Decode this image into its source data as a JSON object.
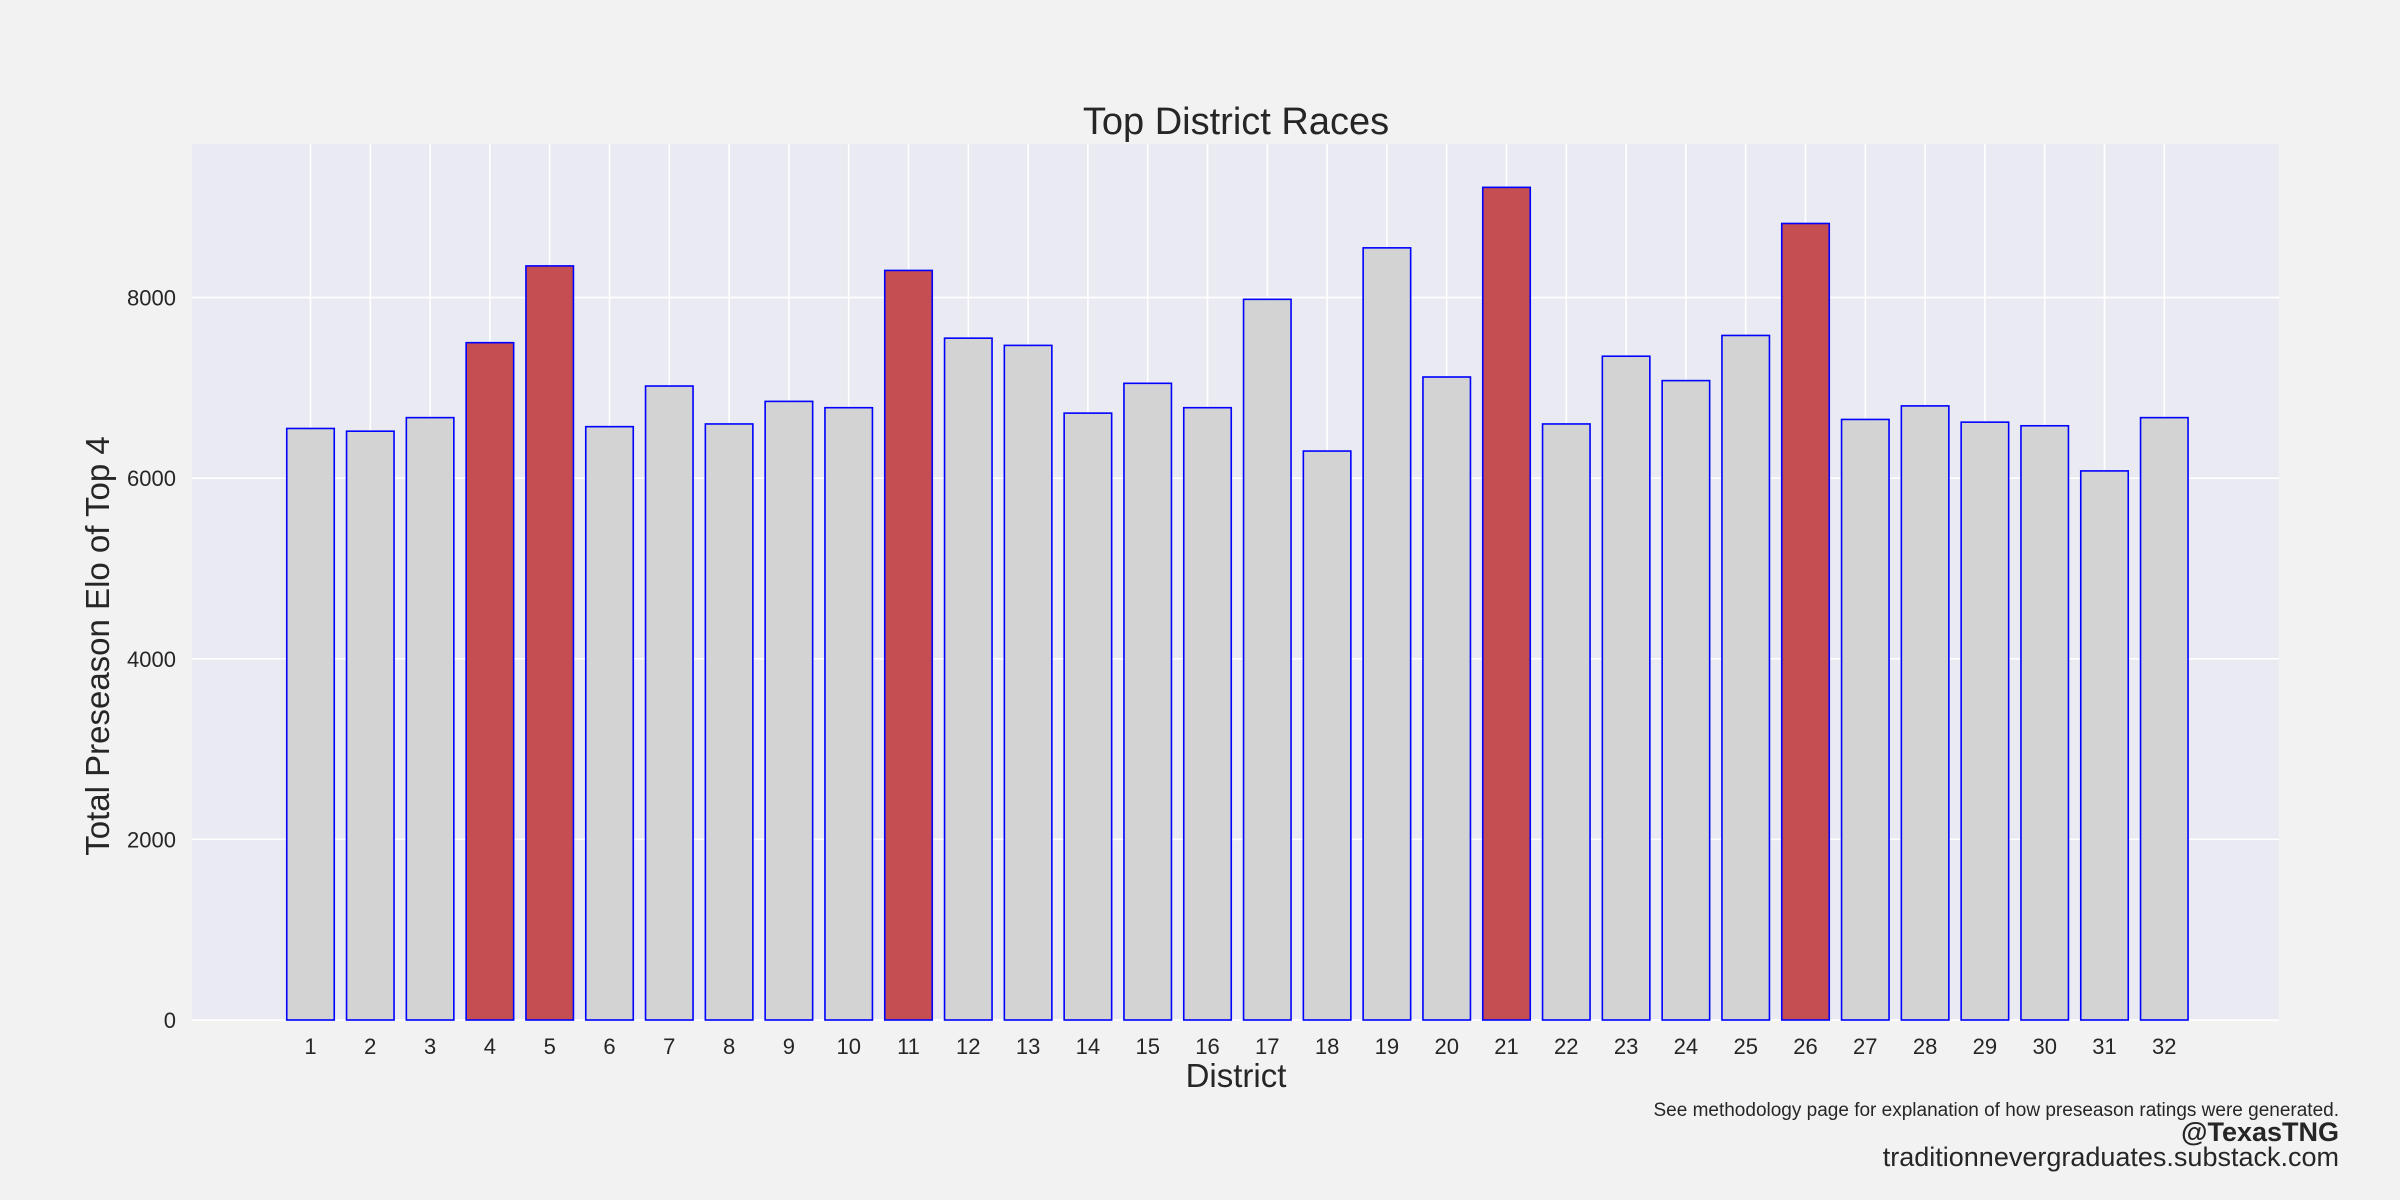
{
  "chart_data": {
    "type": "bar",
    "title": "Top District Races",
    "xlabel": "District",
    "ylabel": "Total Preseason Elo of Top 4",
    "categories": [
      "1",
      "2",
      "3",
      "4",
      "5",
      "6",
      "7",
      "8",
      "9",
      "10",
      "11",
      "12",
      "13",
      "14",
      "15",
      "16",
      "17",
      "18",
      "19",
      "20",
      "21",
      "22",
      "23",
      "24",
      "25",
      "26",
      "27",
      "28",
      "29",
      "30",
      "31",
      "32"
    ],
    "values": [
      6550,
      6520,
      6670,
      7500,
      8350,
      6570,
      7020,
      6600,
      6850,
      6780,
      8300,
      7550,
      7470,
      6720,
      7050,
      6780,
      7980,
      6300,
      8550,
      7120,
      9220,
      6600,
      7350,
      7080,
      7580,
      8820,
      6650,
      6800,
      6620,
      6580,
      6080,
      6670
    ],
    "highlighted": [
      "4",
      "5",
      "11",
      "21",
      "26"
    ],
    "ylim": [
      0,
      9700
    ],
    "yticks": [
      0,
      2000,
      4000,
      6000,
      8000
    ],
    "grid": true,
    "legend": "none",
    "colors": {
      "bar_default": "#d3d3d3",
      "bar_highlight": "#c44e52",
      "bar_edge": "#0000ff",
      "plot_background": "#eaeaf2",
      "figure_background": "#f2f2f2",
      "grid": "#ffffff"
    }
  },
  "footer": {
    "note": "See methodology page for explanation of how preseason ratings were generated.",
    "handle": "@TexasTNG",
    "url": "traditionnevergraduates.substack.com"
  }
}
